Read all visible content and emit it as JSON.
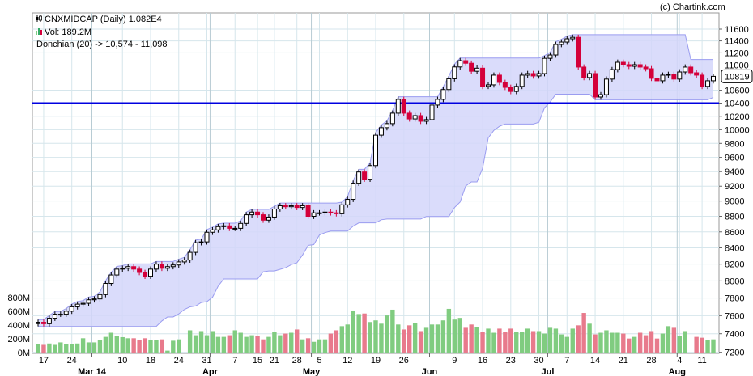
{
  "copyright": "(c) Chartink.com",
  "legend": {
    "title": "CNXMIDCAP (Daily) 1.082E4",
    "volume": "Vol: 189.2M",
    "donchian": "Donchian (20) -> 10,574 - 11,098"
  },
  "chart_data": {
    "type": "candlestick",
    "symbol": "CNXMIDCAP",
    "period": "Daily",
    "last_price_label": "10819",
    "price_axis": {
      "scale": "log",
      "range": [
        7200,
        11600
      ],
      "ticks": [
        11600,
        11400,
        11200,
        11000,
        10600,
        10400,
        10200,
        10000,
        9800,
        9600,
        9400,
        9200,
        9000,
        8800,
        8600,
        8400,
        8200,
        8000,
        7800,
        7600,
        7400,
        7200
      ]
    },
    "volume_axis": {
      "range_millions": [
        0,
        800
      ],
      "ticks": [
        "0M",
        "200M",
        "400M",
        "600M",
        "800M"
      ],
      "values_millions": [
        0,
        200,
        400,
        600,
        800
      ]
    },
    "horizontal_line": 10400,
    "donchian_period": 20,
    "close": [
      7526,
      7510,
      7571,
      7616,
      7616,
      7650,
      7700,
      7730,
      7740,
      7780,
      7790,
      7840,
      7970,
      8070,
      8140,
      8150,
      8170,
      8140,
      8100,
      8055,
      8140,
      8200,
      8150,
      8170,
      8190,
      8227,
      8250,
      8344,
      8464,
      8474,
      8595,
      8625,
      8667,
      8677,
      8645,
      8645,
      8708,
      8820,
      8855,
      8820,
      8750,
      8790,
      8895,
      8938,
      8925,
      8938,
      8915,
      8938,
      8800,
      8845,
      8845,
      8855,
      8845,
      8833,
      8950,
      9023,
      9240,
      9395,
      9295,
      9484,
      9920,
      10030,
      10090,
      10247,
      10457,
      10247,
      10160,
      10210,
      10125,
      10150,
      10370,
      10457,
      10610,
      10780,
      10970,
      11072,
      11030,
      10900,
      10950,
      10660,
      10684,
      10838,
      10722,
      10645,
      10580,
      10660,
      10838,
      10863,
      10825,
      10863,
      11110,
      11165,
      11340,
      11380,
      11435,
      11460,
      10968,
      10800,
      10863,
      10494,
      10530,
      10775,
      10927,
      11046,
      11007,
      10980,
      11007,
      10968,
      10941,
      10787,
      10748,
      10838,
      10850,
      10775,
      10889,
      10968,
      10876,
      10838,
      10660,
      10748,
      10819
    ],
    "volume_millions": [
      120,
      112,
      132,
      112,
      148,
      120,
      120,
      132,
      208,
      148,
      148,
      180,
      228,
      288,
      240,
      224,
      208,
      208,
      180,
      208,
      180,
      180,
      192,
      28,
      172,
      192,
      0,
      324,
      252,
      312,
      252,
      312,
      228,
      228,
      252,
      324,
      288,
      228,
      252,
      240,
      192,
      228,
      300,
      252,
      276,
      288,
      336,
      192,
      208,
      156,
      192,
      192,
      276,
      324,
      384,
      408,
      612,
      560,
      568,
      444,
      468,
      420,
      540,
      624,
      408,
      336,
      396,
      428,
      312,
      360,
      408,
      408,
      468,
      636,
      480,
      504,
      360,
      408,
      372,
      300,
      348,
      288,
      348,
      300,
      348,
      300,
      300,
      348,
      312,
      312,
      276,
      360,
      348,
      264,
      228,
      348,
      396,
      576,
      420,
      264,
      288,
      324,
      288,
      288,
      276,
      204,
      228,
      288,
      252,
      312,
      204,
      276,
      384,
      360,
      240,
      312,
      0,
      228,
      216,
      180,
      192
    ],
    "x_ticks": [
      {
        "label": "17",
        "slot": 1
      },
      {
        "label": "24",
        "slot": 6
      },
      {
        "label": "10",
        "slot": 15
      },
      {
        "label": "18",
        "slot": 20
      },
      {
        "label": "24",
        "slot": 25
      },
      {
        "label": "31",
        "slot": 30
      },
      {
        "label": "7",
        "slot": 35
      },
      {
        "label": "15",
        "slot": 39
      },
      {
        "label": "21",
        "slot": 42
      },
      {
        "label": "28",
        "slot": 46
      },
      {
        "label": "5",
        "slot": 50
      },
      {
        "label": "12",
        "slot": 55
      },
      {
        "label": "19",
        "slot": 60
      },
      {
        "label": "26",
        "slot": 65
      },
      {
        "label": "9",
        "slot": 74
      },
      {
        "label": "16",
        "slot": 79
      },
      {
        "label": "23",
        "slot": 84
      },
      {
        "label": "30",
        "slot": 89
      },
      {
        "label": "7",
        "slot": 94
      },
      {
        "label": "14",
        "slot": 99
      },
      {
        "label": "21",
        "slot": 104
      },
      {
        "label": "28",
        "slot": 109
      },
      {
        "label": "4",
        "slot": 114
      },
      {
        "label": "11",
        "slot": 118
      }
    ],
    "month_ticks": [
      {
        "label": "Mar 14",
        "slot": 10
      },
      {
        "label": "Apr",
        "slot": 31
      },
      {
        "label": "May",
        "slot": 49
      },
      {
        "label": "Jun",
        "slot": 70
      },
      {
        "label": "Jul",
        "slot": 91
      },
      {
        "label": "Aug",
        "slot": 114
      }
    ],
    "colors": {
      "up_body": "#ffffff",
      "down_body": "#d4003a",
      "up_volume": "#80cc80",
      "down_volume": "#e87a8c",
      "band_fill": "#d4d6fa",
      "band_line": "#9a9cf0",
      "hline": "#0000e0",
      "grid": "#d6e6ec"
    }
  }
}
